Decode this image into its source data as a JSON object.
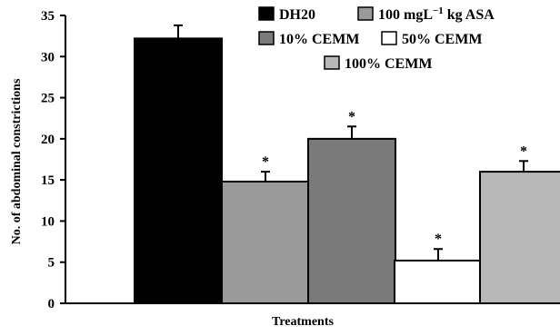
{
  "chart_data": {
    "type": "bar",
    "title": "",
    "xlabel": "Treatments",
    "ylabel": "No. of abdominal constrictions",
    "ylim": [
      0,
      35
    ],
    "yticks": [
      0,
      5,
      10,
      15,
      20,
      25,
      30,
      35
    ],
    "grid": false,
    "legend_position": "top-right",
    "series": [
      {
        "name": "DH20",
        "value": 32.2,
        "error": 1.6,
        "significance": "",
        "color": "#000000",
        "label_suffix": ""
      },
      {
        "name": "100 mgL",
        "value": 14.8,
        "error": 1.2,
        "significance": "*",
        "color": "#9a9a9a",
        "label_suffix": "−1",
        "label_tail": " kg ASA"
      },
      {
        "name": "10% CEMM",
        "value": 20.0,
        "error": 1.5,
        "significance": "*",
        "color": "#7a7a7a",
        "label_suffix": ""
      },
      {
        "name": "50% CEMM",
        "value": 5.2,
        "error": 1.4,
        "significance": "*",
        "color": "#ffffff",
        "label_suffix": ""
      },
      {
        "name": "100% CEMM",
        "value": 16.0,
        "error": 1.3,
        "significance": "*",
        "color": "#b8b8b8",
        "label_suffix": ""
      }
    ]
  }
}
